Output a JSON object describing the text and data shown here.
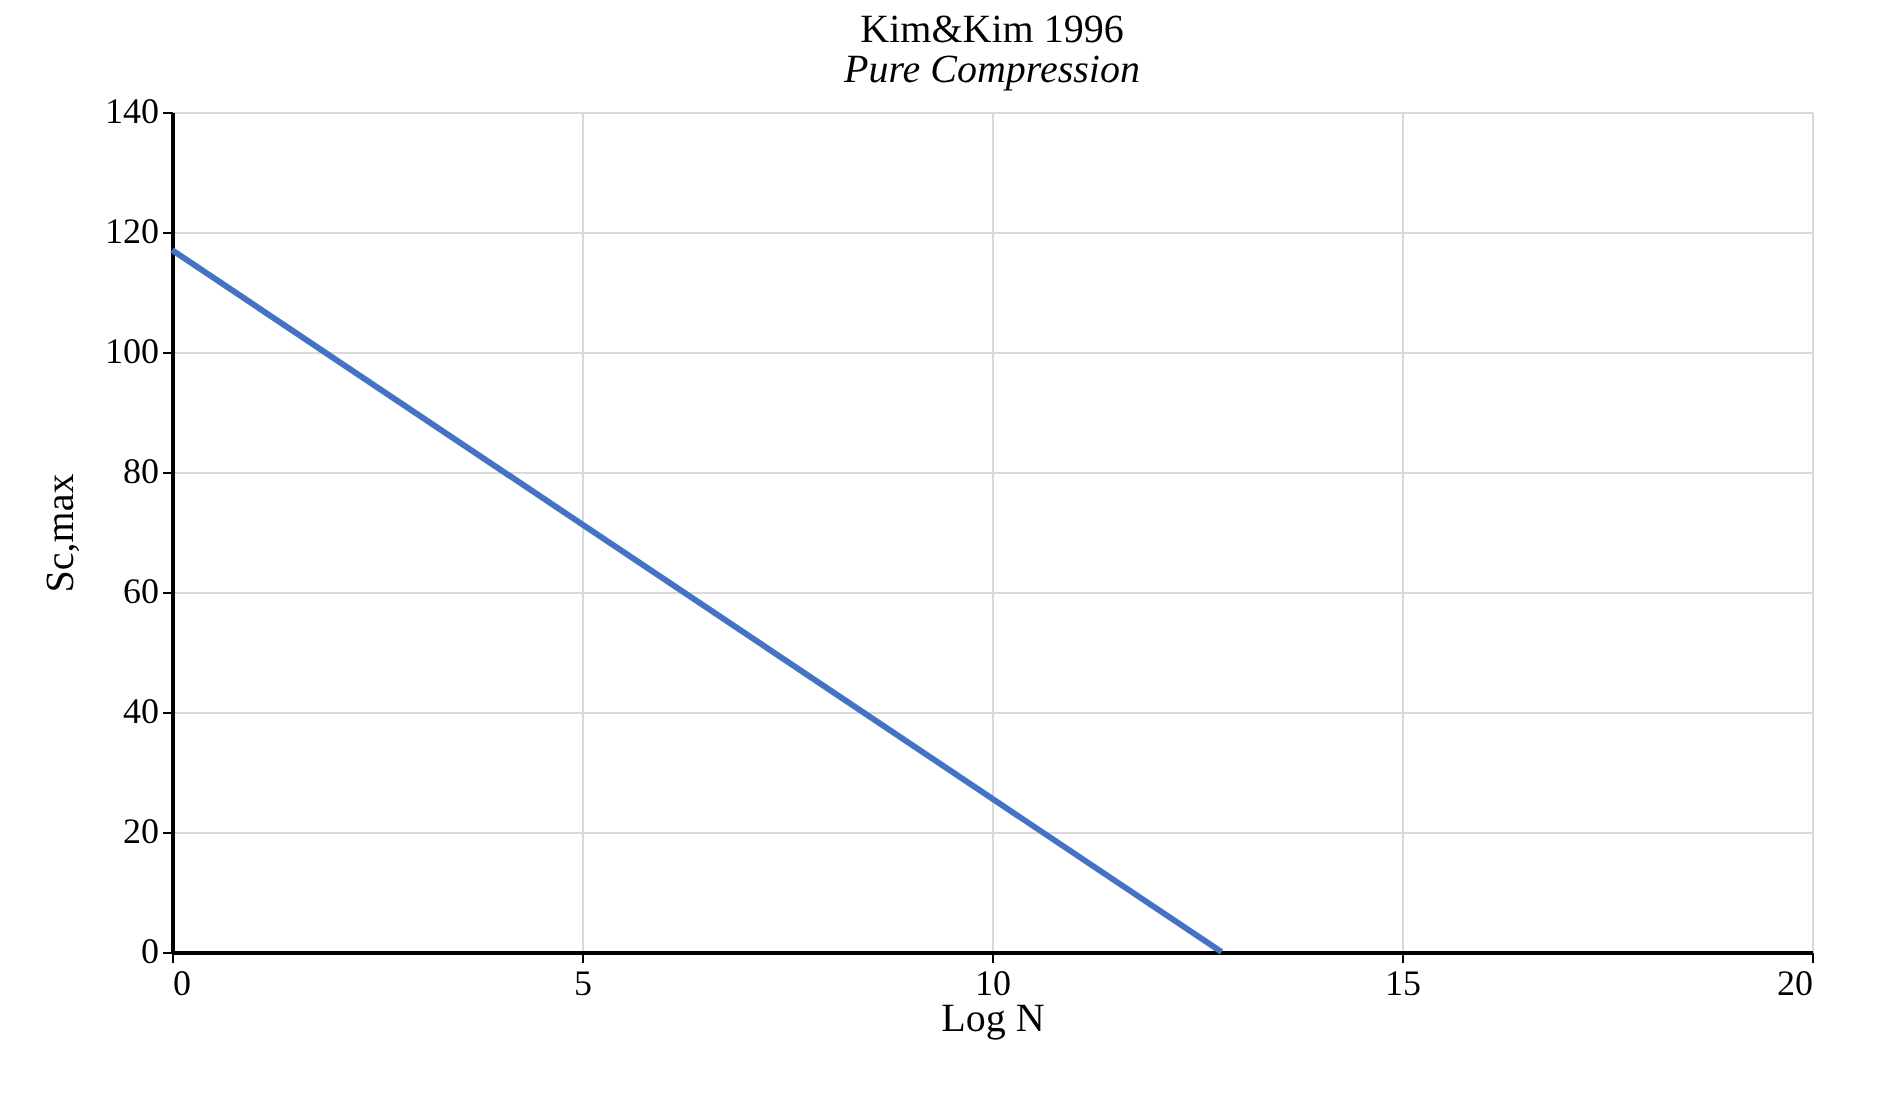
{
  "chart_data": {
    "type": "line",
    "title": "Kim&Kim 1996",
    "subtitle": "Pure Compression",
    "xlabel": "Log N",
    "ylabel": "Sc,max",
    "x": [
      0,
      12.8
    ],
    "series": [
      {
        "color": "#4472c4",
        "values": [
          117,
          0
        ]
      }
    ],
    "xlim": [
      0,
      20
    ],
    "xticks": [
      0,
      5,
      10,
      15,
      20
    ],
    "ylim": [
      0,
      140
    ],
    "yticks": [
      0,
      20,
      40,
      60,
      80,
      100,
      120,
      140
    ],
    "grid": true,
    "legend": false,
    "marker": "none",
    "line_style": "solid"
  }
}
